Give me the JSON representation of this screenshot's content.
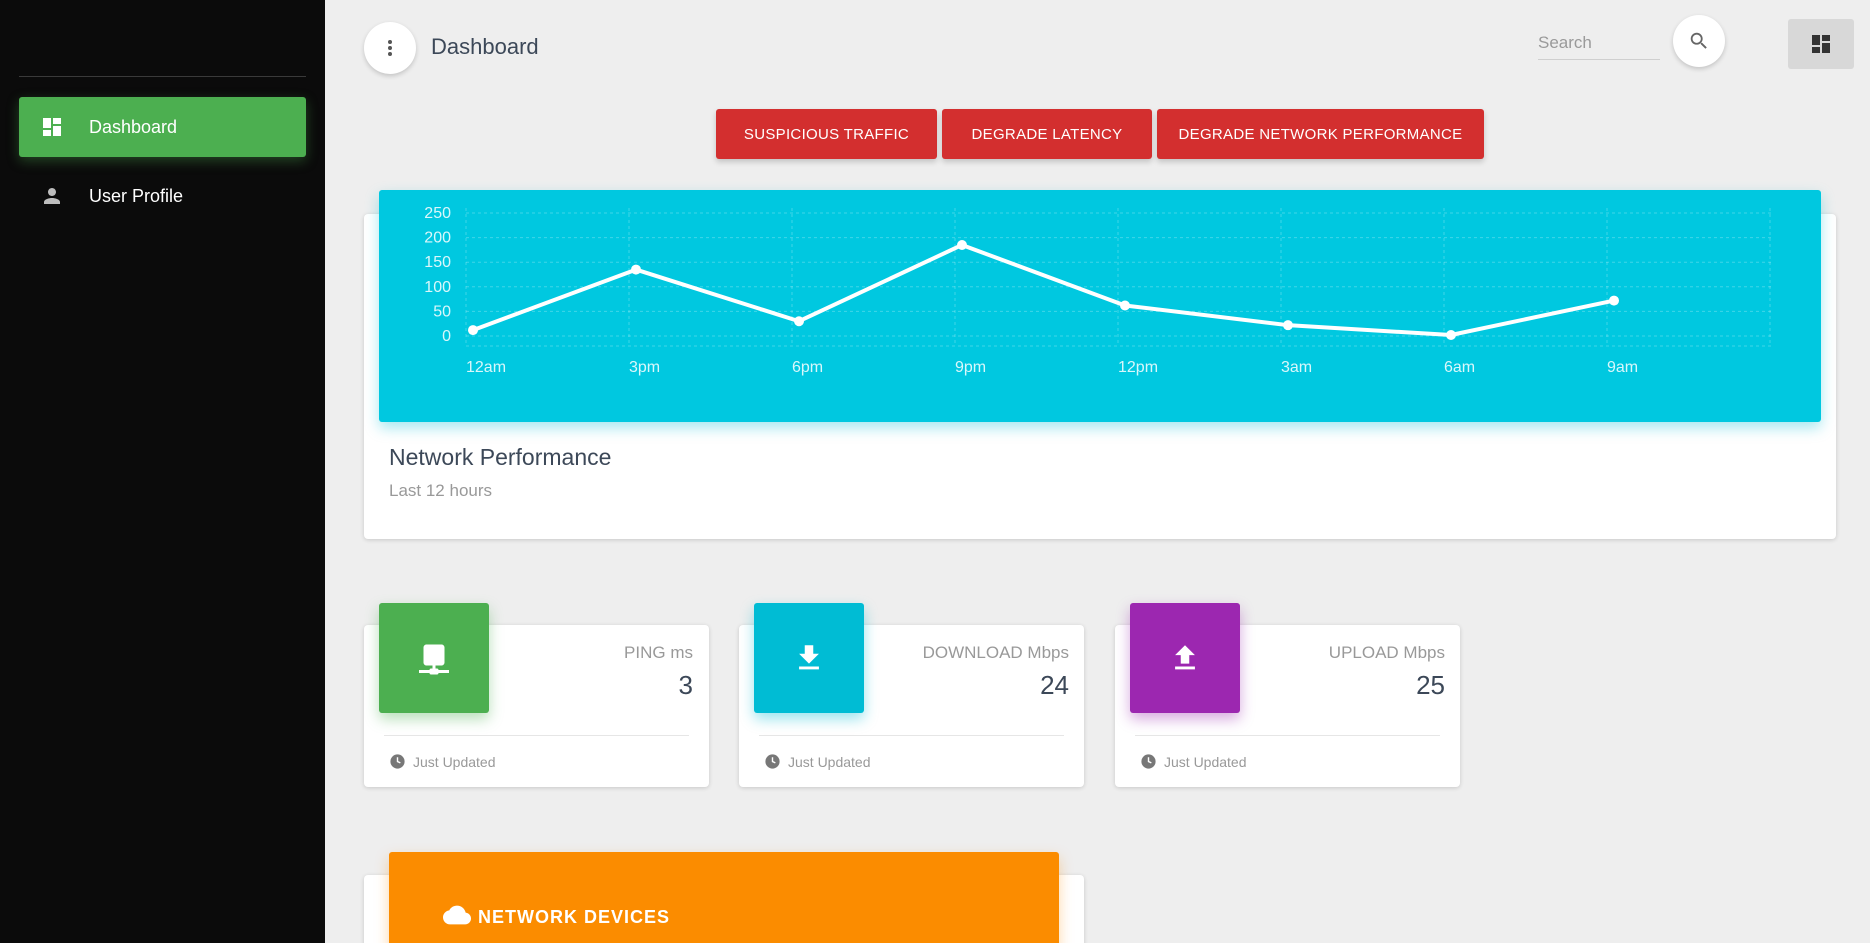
{
  "sidebar": {
    "items": [
      {
        "label": "Dashboard",
        "icon": "dashboard-icon",
        "active": true
      },
      {
        "label": "User Profile",
        "icon": "person-icon",
        "active": false
      }
    ]
  },
  "header": {
    "title": "Dashboard",
    "search_placeholder": "Search"
  },
  "actions": [
    {
      "label": "SUSPICIOUS TRAFFIC"
    },
    {
      "label": "DEGRADE LATENCY"
    },
    {
      "label": "DEGRADE NETWORK PERFORMANCE"
    }
  ],
  "chart_card": {
    "title": "Network Performance",
    "subtitle": "Last 12 hours"
  },
  "chart_data": {
    "type": "line",
    "categories": [
      "12am",
      "3pm",
      "6pm",
      "9pm",
      "12pm",
      "3am",
      "6am",
      "9am"
    ],
    "y_ticks": [
      "0",
      "50",
      "100",
      "150",
      "200",
      "250"
    ],
    "series": [
      {
        "values": [
          12,
          135,
          30,
          185,
          62,
          22,
          2,
          72
        ]
      }
    ],
    "ylim": [
      0,
      250
    ],
    "grid": true
  },
  "stats": [
    {
      "label": "PING ms",
      "value": "3",
      "footer": "Just Updated",
      "color": "#4caf50",
      "icon": "network-icon"
    },
    {
      "label": "DOWNLOAD Mbps",
      "value": "24",
      "footer": "Just Updated",
      "color": "#00bcd4",
      "icon": "download-icon"
    },
    {
      "label": "UPLOAD Mbps",
      "value": "25",
      "footer": "Just Updated",
      "color": "#9c27b0",
      "icon": "upload-icon"
    }
  ],
  "devices": {
    "title": "NETWORK DEVICES"
  },
  "colors": {
    "sidebar_bg": "#0b0b0b",
    "active": "#4caf50",
    "danger": "#d32f2f",
    "chart_bg": "#00c8e0",
    "devices_bg": "#fb8c00"
  }
}
